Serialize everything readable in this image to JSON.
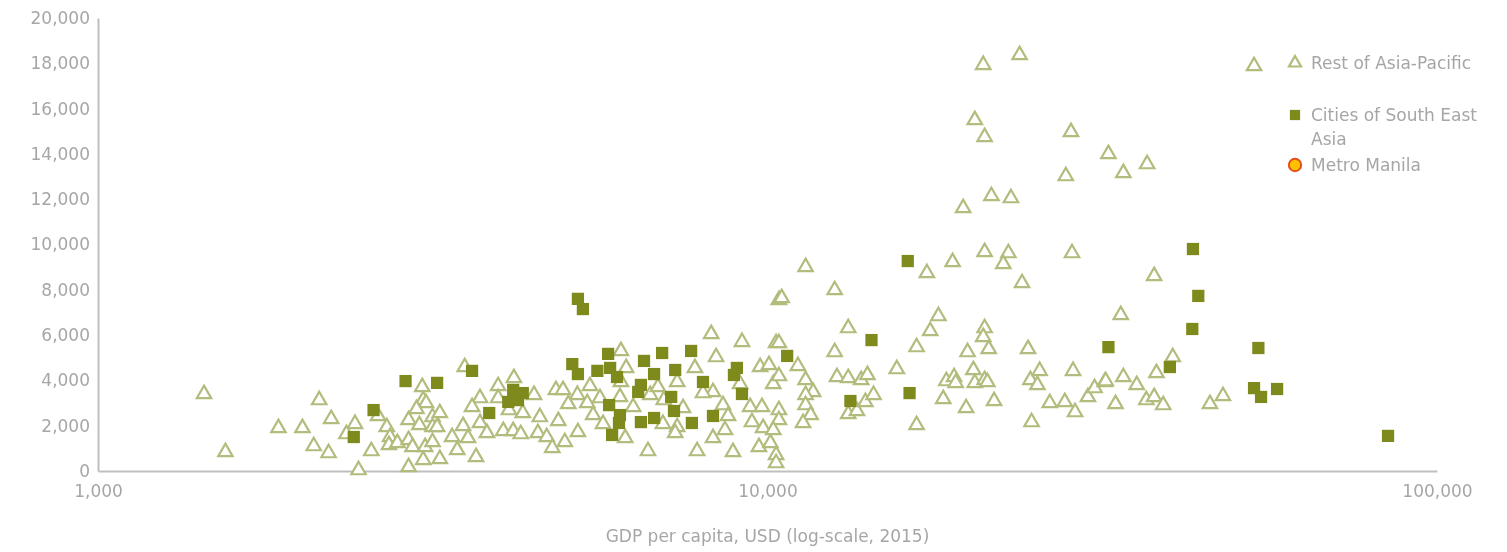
{
  "chart_data": {
    "type": "scatter",
    "xlabel": "GDP per capita, USD (log-scale, 2015)",
    "log": "x",
    "xlim": [
      1000,
      100000
    ],
    "xticks": [
      {
        "value": 1000,
        "label": "1,000"
      },
      {
        "value": 10000,
        "label": "10,000"
      },
      {
        "value": 100000,
        "label": "100,000"
      }
    ],
    "ylim": [
      0,
      20000
    ],
    "yticks": [
      {
        "value": 0,
        "label": "0"
      },
      {
        "value": 2000,
        "label": "2,000"
      },
      {
        "value": 4000,
        "label": "4,000"
      },
      {
        "value": 6000,
        "label": "6,000"
      },
      {
        "value": 8000,
        "label": "8,000"
      },
      {
        "value": 10000,
        "label": "10,000"
      },
      {
        "value": 12000,
        "label": "12,000"
      },
      {
        "value": 14000,
        "label": "14,000"
      },
      {
        "value": 16000,
        "label": "16,000"
      },
      {
        "value": 18000,
        "label": "18,000"
      },
      {
        "value": 20000,
        "label": "20,000"
      }
    ],
    "grid": false,
    "legend": "top right",
    "series": [
      {
        "name": "Rest of Asia-Pacific",
        "color": "#b3bb7d",
        "marker": "triangle",
        "x": [
          1440,
          1550,
          1860,
          2020,
          2140,
          2230,
          2100,
          2210,
          2420,
          2350,
          2560,
          2450,
          2620,
          2700,
          2730,
          2720,
          2800,
          2910,
          2910,
          2950,
          2910,
          3050,
          3060,
          3090,
          2990,
          3020,
          3160,
          3160,
          3080,
          3060,
          3160,
          3530,
          3720,
          3620,
          3960,
          4180,
          3960,
          4110,
          4310,
          4480,
          3720,
          3810,
          3510,
          3240,
          3210,
          3380,
          3570,
          3440,
          3670,
          3240,
          4030,
          4170,
          4280,
          4540,
          4680,
          4770,
          4980,
          4570,
          4870,
          4830,
          4950,
          5200,
          5040,
          5430,
          5380,
          5620,
          6040,
          6150,
          6040,
          6020,
          5490,
          5680,
          5210,
          6130,
          6300,
          6680,
          6860,
          7000,
          6630,
          6980,
          7330,
          7280,
          7480,
          7790,
          7330,
          8240,
          8380,
          8290,
          8010,
          8580,
          8730,
          8640,
          8290,
          7850,
          9160,
          9100,
          9420,
          9480,
          9750,
          10050,
          10200,
          9810,
          9850,
          9710,
          10100,
          8880,
          10300,
          10400,
          10300,
          10300,
          11400,
          10500,
          12600,
          13200,
          12600,
          10400,
          11100,
          10400,
          11400,
          11700,
          11400,
          11400,
          11600,
          11300,
          10400,
          10400,
          10200,
          12700,
          13200,
          13800,
          14100,
          13200,
          13600,
          14000,
          14400,
          15600,
          16700,
          17300,
          18900,
          21100,
          22900,
          22500,
          24000,
          28500,
          18000,
          17500,
          21100,
          21000,
          21400,
          19900,
          24500,
          20300,
          18500,
          19000,
          19100,
          20400,
          21100,
          21300,
          18300,
          19800,
          21800,
          16700,
          24800,
          24700,
          25500,
          25300,
          28600,
          26400,
          27800,
          28800,
          30100,
          30800,
          31900,
          21000,
          23800,
          20400,
          21100,
          28400,
          32300,
          34000,
          36900,
          27900,
          21600,
          23100,
          19600,
          37800,
          33700,
          40300,
          38100,
          34000,
          32000,
          35600,
          33100,
          36800,
          37800,
          39000,
          45800,
          47900,
          53300
        ],
        "values": [
          3400,
          840,
          1900,
          1900,
          3130,
          2300,
          1100,
          790,
          2080,
          1630,
          880,
          40,
          2430,
          1940,
          1500,
          1150,
          1240,
          2250,
          1370,
          1060,
          180,
          3710,
          3130,
          3000,
          2740,
          2030,
          2380,
          1940,
          1060,
          490,
          1280,
          4590,
          3220,
          2830,
          3750,
          4110,
          3220,
          2690,
          2560,
          3360,
          2120,
          1680,
          1990,
          2560,
          1940,
          1500,
          1460,
          930,
          620,
          530,
          1770,
          1770,
          1630,
          1680,
          1500,
          1020,
          1280,
          2380,
          2210,
          3580,
          3580,
          3360,
          2960,
          3750,
          3000,
          3220,
          5300,
          4550,
          3930,
          3270,
          2470,
          2080,
          1720,
          1460,
          2830,
          3360,
          3710,
          3130,
          880,
          2080,
          1940,
          1680,
          2780,
          4550,
          3930,
          6050,
          5030,
          3490,
          3440,
          2910,
          2430,
          1810,
          1460,
          880,
          5700,
          3840,
          2830,
          2160,
          4590,
          4680,
          3840,
          2830,
          1900,
          1060,
          1240,
          840,
          5650,
          7550,
          710,
          350,
          9010,
          7640,
          7990,
          6310,
          5250,
          5650,
          4640,
          4190,
          4020,
          3490,
          3360,
          2910,
          2470,
          2120,
          2690,
          2250,
          1810,
          4150,
          4110,
          4020,
          4240,
          2520,
          2650,
          3050,
          3360,
          4500,
          5470,
          8740,
          9230,
          9670,
          9620,
          9140,
          8300,
          9620,
          6840,
          6180,
          6310,
          5920,
          5390,
          5250,
          5390,
          4460,
          3970,
          4150,
          3890,
          3890,
          4020,
          3930,
          3180,
          2780,
          3090,
          2030,
          2160,
          4020,
          4420,
          3800,
          4420,
          3000,
          3050,
          2600,
          3270,
          3660,
          3930,
          17930,
          18370,
          15500,
          14750,
          14970,
          14000,
          13160,
          13550,
          13020,
          12140,
          12050,
          11610,
          8610,
          6890,
          5030,
          4330,
          4150,
          3970,
          3800,
          2960,
          3130,
          3270,
          2910,
          2960,
          3310,
          17880
        ]
      },
      {
        "name": "Cities of South East Asia",
        "color": "#7f8a1c",
        "marker": "square",
        "x": [
          2410,
          2880,
          3210,
          3620,
          3840,
          4100,
          4240,
          4170,
          4310,
          5210,
          5300,
          5110,
          5210,
          5570,
          5820,
          5780,
          5960,
          5800,
          6020,
          6000,
          5860,
          6470,
          6410,
          6540,
          6470,
          6770,
          6770,
          6960,
          7180,
          7250,
          7280,
          7690,
          7710,
          8010,
          8290,
          8910,
          9000,
          9160,
          10700,
          13300,
          14300,
          16300,
          16200,
          32300,
          39900,
          43100,
          43200,
          44000,
          54100,
          53300,
          54600,
          57700,
          84500,
          2580
        ],
        "values": [
          1500,
          3970,
          3890,
          4420,
          2560,
          3050,
          3130,
          3580,
          3440,
          7600,
          7150,
          4720,
          4280,
          4420,
          4550,
          5170,
          4150,
          2910,
          2470,
          2120,
          1590,
          3800,
          3490,
          4860,
          2160,
          4280,
          2340,
          5210,
          3270,
          2650,
          4460,
          5300,
          2120,
          3930,
          2430,
          4240,
          4550,
          3400,
          5080,
          3090,
          5780,
          3440,
          9270,
          5470,
          4590,
          6270,
          9800,
          7730,
          5430,
          3660,
          3270,
          3620,
          1550,
          2690
        ]
      },
      {
        "name": "Metro Manila",
        "color": "#ffc000",
        "marker": "circle"
      }
    ]
  }
}
